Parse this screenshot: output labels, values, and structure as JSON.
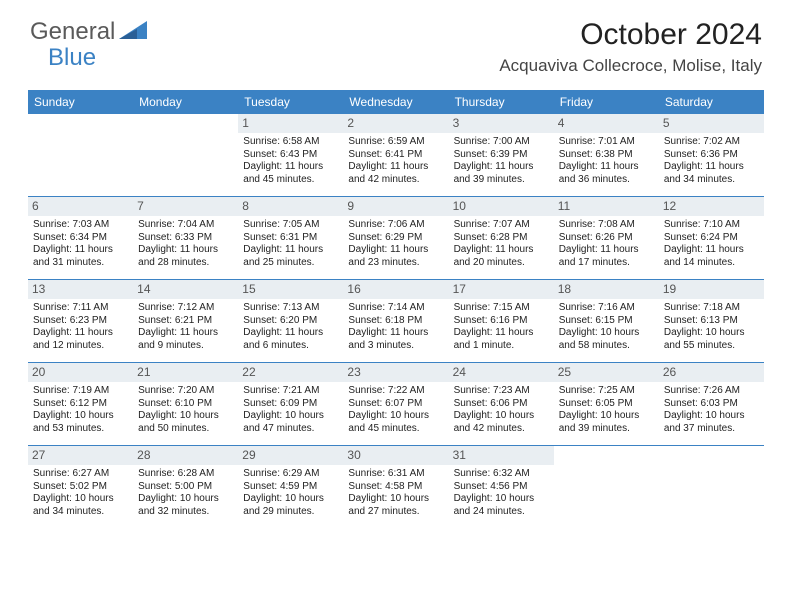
{
  "brand": {
    "part1": "General",
    "part2": "Blue"
  },
  "month_title": "October 2024",
  "location": "Acquaviva Collecroce, Molise, Italy",
  "colors": {
    "accent": "#3b82c4",
    "daynum_bg": "#e9eef2",
    "text": "#222222"
  },
  "days_of_week": [
    "Sunday",
    "Monday",
    "Tuesday",
    "Wednesday",
    "Thursday",
    "Friday",
    "Saturday"
  ],
  "weeks": [
    [
      null,
      null,
      {
        "n": "1",
        "sr": "6:58 AM",
        "ss": "6:43 PM",
        "dl": "11 hours and 45 minutes."
      },
      {
        "n": "2",
        "sr": "6:59 AM",
        "ss": "6:41 PM",
        "dl": "11 hours and 42 minutes."
      },
      {
        "n": "3",
        "sr": "7:00 AM",
        "ss": "6:39 PM",
        "dl": "11 hours and 39 minutes."
      },
      {
        "n": "4",
        "sr": "7:01 AM",
        "ss": "6:38 PM",
        "dl": "11 hours and 36 minutes."
      },
      {
        "n": "5",
        "sr": "7:02 AM",
        "ss": "6:36 PM",
        "dl": "11 hours and 34 minutes."
      }
    ],
    [
      {
        "n": "6",
        "sr": "7:03 AM",
        "ss": "6:34 PM",
        "dl": "11 hours and 31 minutes."
      },
      {
        "n": "7",
        "sr": "7:04 AM",
        "ss": "6:33 PM",
        "dl": "11 hours and 28 minutes."
      },
      {
        "n": "8",
        "sr": "7:05 AM",
        "ss": "6:31 PM",
        "dl": "11 hours and 25 minutes."
      },
      {
        "n": "9",
        "sr": "7:06 AM",
        "ss": "6:29 PM",
        "dl": "11 hours and 23 minutes."
      },
      {
        "n": "10",
        "sr": "7:07 AM",
        "ss": "6:28 PM",
        "dl": "11 hours and 20 minutes."
      },
      {
        "n": "11",
        "sr": "7:08 AM",
        "ss": "6:26 PM",
        "dl": "11 hours and 17 minutes."
      },
      {
        "n": "12",
        "sr": "7:10 AM",
        "ss": "6:24 PM",
        "dl": "11 hours and 14 minutes."
      }
    ],
    [
      {
        "n": "13",
        "sr": "7:11 AM",
        "ss": "6:23 PM",
        "dl": "11 hours and 12 minutes."
      },
      {
        "n": "14",
        "sr": "7:12 AM",
        "ss": "6:21 PM",
        "dl": "11 hours and 9 minutes."
      },
      {
        "n": "15",
        "sr": "7:13 AM",
        "ss": "6:20 PM",
        "dl": "11 hours and 6 minutes."
      },
      {
        "n": "16",
        "sr": "7:14 AM",
        "ss": "6:18 PM",
        "dl": "11 hours and 3 minutes."
      },
      {
        "n": "17",
        "sr": "7:15 AM",
        "ss": "6:16 PM",
        "dl": "11 hours and 1 minute."
      },
      {
        "n": "18",
        "sr": "7:16 AM",
        "ss": "6:15 PM",
        "dl": "10 hours and 58 minutes."
      },
      {
        "n": "19",
        "sr": "7:18 AM",
        "ss": "6:13 PM",
        "dl": "10 hours and 55 minutes."
      }
    ],
    [
      {
        "n": "20",
        "sr": "7:19 AM",
        "ss": "6:12 PM",
        "dl": "10 hours and 53 minutes."
      },
      {
        "n": "21",
        "sr": "7:20 AM",
        "ss": "6:10 PM",
        "dl": "10 hours and 50 minutes."
      },
      {
        "n": "22",
        "sr": "7:21 AM",
        "ss": "6:09 PM",
        "dl": "10 hours and 47 minutes."
      },
      {
        "n": "23",
        "sr": "7:22 AM",
        "ss": "6:07 PM",
        "dl": "10 hours and 45 minutes."
      },
      {
        "n": "24",
        "sr": "7:23 AM",
        "ss": "6:06 PM",
        "dl": "10 hours and 42 minutes."
      },
      {
        "n": "25",
        "sr": "7:25 AM",
        "ss": "6:05 PM",
        "dl": "10 hours and 39 minutes."
      },
      {
        "n": "26",
        "sr": "7:26 AM",
        "ss": "6:03 PM",
        "dl": "10 hours and 37 minutes."
      }
    ],
    [
      {
        "n": "27",
        "sr": "6:27 AM",
        "ss": "5:02 PM",
        "dl": "10 hours and 34 minutes."
      },
      {
        "n": "28",
        "sr": "6:28 AM",
        "ss": "5:00 PM",
        "dl": "10 hours and 32 minutes."
      },
      {
        "n": "29",
        "sr": "6:29 AM",
        "ss": "4:59 PM",
        "dl": "10 hours and 29 minutes."
      },
      {
        "n": "30",
        "sr": "6:31 AM",
        "ss": "4:58 PM",
        "dl": "10 hours and 27 minutes."
      },
      {
        "n": "31",
        "sr": "6:32 AM",
        "ss": "4:56 PM",
        "dl": "10 hours and 24 minutes."
      },
      null,
      null
    ]
  ],
  "labels": {
    "sunrise": "Sunrise: ",
    "sunset": "Sunset: ",
    "daylight": "Daylight: "
  }
}
